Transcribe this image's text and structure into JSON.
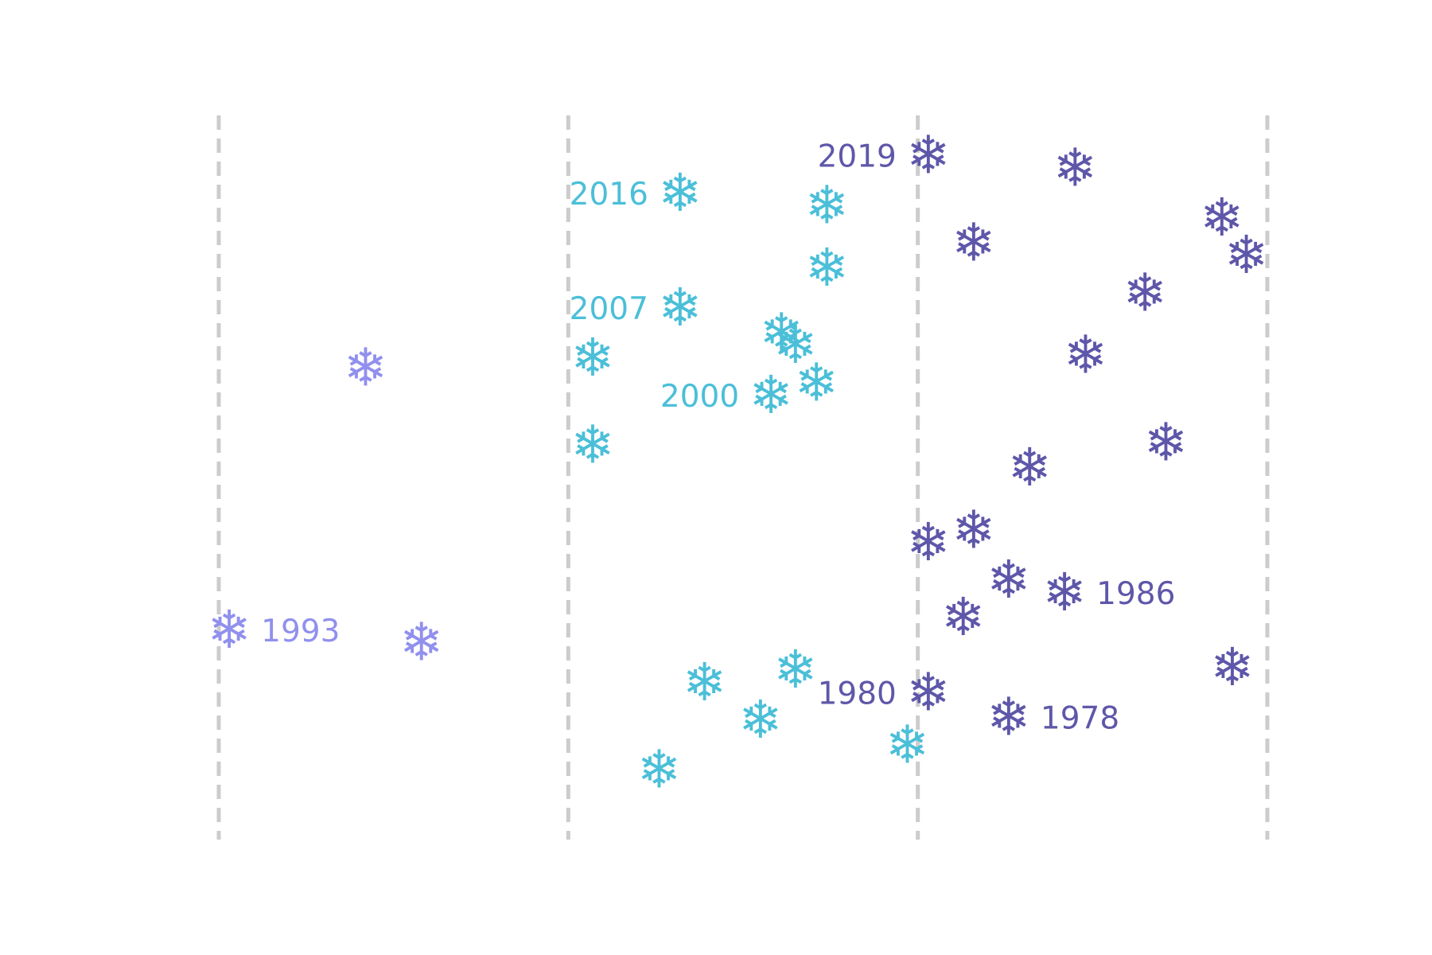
{
  "chart_data": {
    "type": "scatter",
    "title": "",
    "xlabel": "",
    "ylabel": "",
    "marker": "snowflake",
    "guides_x": [
      1,
      2,
      3,
      4
    ],
    "xlim": [
      0.55,
      4.45
    ],
    "ylim": [
      0.5,
      29.5
    ],
    "colors": {
      "low": "#9190EE",
      "mid": "#4BBFD8",
      "high": "#5E57A9"
    },
    "points": [
      {
        "x": 1.03,
        "y": 8.9,
        "group": "low",
        "label": "1993"
      },
      {
        "x": 1.42,
        "y": 19.4,
        "group": "low",
        "label": ""
      },
      {
        "x": 1.58,
        "y": 8.4,
        "group": "low",
        "label": ""
      },
      {
        "x": 2.32,
        "y": 26.4,
        "group": "mid",
        "label": "2016"
      },
      {
        "x": 2.32,
        "y": 21.8,
        "group": "mid",
        "label": "2007"
      },
      {
        "x": 2.58,
        "y": 18.3,
        "group": "mid",
        "label": "2000"
      },
      {
        "x": 2.74,
        "y": 25.9,
        "group": "mid",
        "label": ""
      },
      {
        "x": 2.74,
        "y": 23.4,
        "group": "mid",
        "label": ""
      },
      {
        "x": 2.61,
        "y": 20.8,
        "group": "mid",
        "label": ""
      },
      {
        "x": 2.65,
        "y": 20.3,
        "group": "mid",
        "label": ""
      },
      {
        "x": 2.07,
        "y": 19.8,
        "group": "mid",
        "label": ""
      },
      {
        "x": 2.71,
        "y": 18.8,
        "group": "mid",
        "label": ""
      },
      {
        "x": 2.07,
        "y": 16.3,
        "group": "mid",
        "label": ""
      },
      {
        "x": 2.65,
        "y": 7.3,
        "group": "mid",
        "label": ""
      },
      {
        "x": 2.39,
        "y": 6.8,
        "group": "mid",
        "label": ""
      },
      {
        "x": 2.55,
        "y": 5.3,
        "group": "mid",
        "label": ""
      },
      {
        "x": 2.97,
        "y": 4.3,
        "group": "mid",
        "label": ""
      },
      {
        "x": 2.26,
        "y": 3.3,
        "group": "mid",
        "label": ""
      },
      {
        "x": 3.03,
        "y": 27.9,
        "group": "high",
        "label": "2019"
      },
      {
        "x": 3.45,
        "y": 27.4,
        "group": "high",
        "label": ""
      },
      {
        "x": 3.87,
        "y": 25.4,
        "group": "high",
        "label": ""
      },
      {
        "x": 3.16,
        "y": 24.4,
        "group": "high",
        "label": ""
      },
      {
        "x": 3.94,
        "y": 23.9,
        "group": "high",
        "label": ""
      },
      {
        "x": 3.65,
        "y": 22.4,
        "group": "high",
        "label": ""
      },
      {
        "x": 3.48,
        "y": 19.9,
        "group": "high",
        "label": ""
      },
      {
        "x": 3.71,
        "y": 16.4,
        "group": "high",
        "label": ""
      },
      {
        "x": 3.32,
        "y": 15.4,
        "group": "high",
        "label": ""
      },
      {
        "x": 3.16,
        "y": 12.9,
        "group": "high",
        "label": ""
      },
      {
        "x": 3.03,
        "y": 12.4,
        "group": "high",
        "label": ""
      },
      {
        "x": 3.26,
        "y": 10.9,
        "group": "high",
        "label": ""
      },
      {
        "x": 3.42,
        "y": 10.4,
        "group": "high",
        "label": "1986"
      },
      {
        "x": 3.13,
        "y": 9.4,
        "group": "high",
        "label": ""
      },
      {
        "x": 3.9,
        "y": 7.4,
        "group": "high",
        "label": ""
      },
      {
        "x": 3.03,
        "y": 6.4,
        "group": "high",
        "label": "1980"
      },
      {
        "x": 3.26,
        "y": 5.4,
        "group": "high",
        "label": "1978"
      }
    ],
    "label_side": {
      "1993": "right",
      "2016": "left",
      "2007": "left",
      "2000": "left",
      "2019": "left",
      "1986": "right",
      "1980": "left",
      "1978": "right"
    },
    "grid": false,
    "legend": "none"
  },
  "icons": {
    "marker_glyph": "❄",
    "marker_name": "snowflake-icon"
  }
}
